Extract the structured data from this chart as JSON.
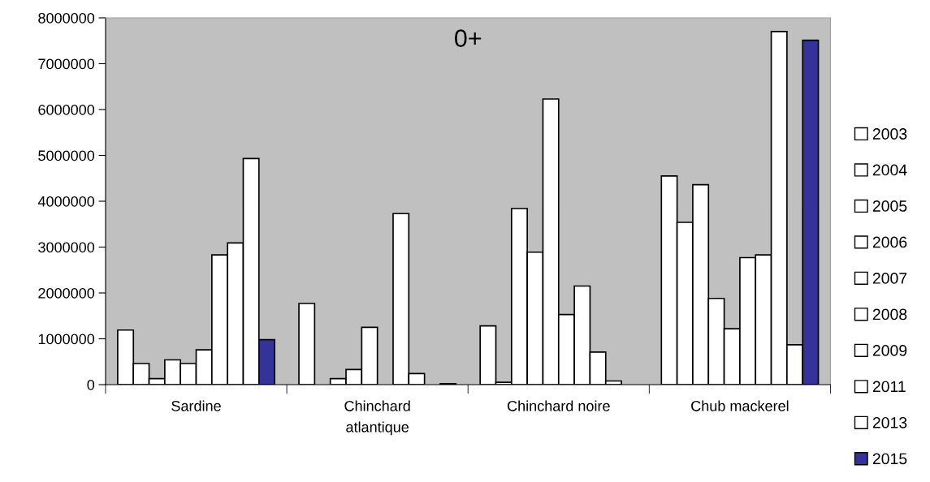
{
  "chart_data": {
    "type": "bar",
    "title": "0+",
    "categories": [
      "Sardine",
      "Chinchard\natlantique",
      "Chinchard noire",
      "Chub mackerel"
    ],
    "series": [
      {
        "name": "2003",
        "color": "#ffffff",
        "values": [
          1190000,
          1770000,
          1280000,
          4550000
        ]
      },
      {
        "name": "2004",
        "color": "#ffffff",
        "values": [
          460000,
          null,
          50000,
          3540000
        ]
      },
      {
        "name": "2005",
        "color": "#ffffff",
        "values": [
          130000,
          130000,
          3840000,
          4360000
        ]
      },
      {
        "name": "2006",
        "color": "#ffffff",
        "values": [
          540000,
          330000,
          2890000,
          1880000
        ]
      },
      {
        "name": "2007",
        "color": "#ffffff",
        "values": [
          460000,
          1250000,
          6230000,
          1220000
        ]
      },
      {
        "name": "2008",
        "color": "#ffffff",
        "values": [
          760000,
          null,
          1530000,
          2770000
        ]
      },
      {
        "name": "2009",
        "color": "#ffffff",
        "values": [
          2830000,
          3730000,
          2150000,
          2830000
        ]
      },
      {
        "name": "2011",
        "color": "#ffffff",
        "values": [
          3090000,
          240000,
          710000,
          7700000
        ]
      },
      {
        "name": "2013",
        "color": "#ffffff",
        "values": [
          4930000,
          null,
          80000,
          870000
        ]
      },
      {
        "name": "2015",
        "color": "#333399",
        "values": [
          980000,
          20000,
          null,
          7510000
        ]
      }
    ],
    "ylim": [
      0,
      8000000
    ],
    "yticks": [
      0,
      1000000,
      2000000,
      3000000,
      4000000,
      5000000,
      6000000,
      7000000,
      8000000
    ],
    "grid": false,
    "legend": "right"
  }
}
